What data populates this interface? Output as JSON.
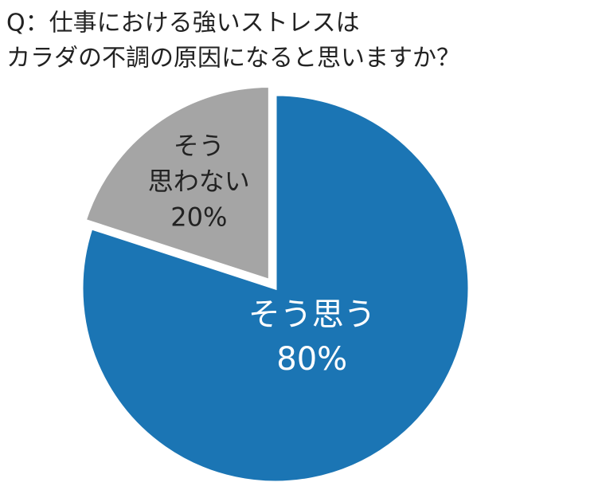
{
  "chart_data": {
    "type": "pie",
    "title": [
      "Q：仕事における強いストレスは",
      "カラダの不調の原因になると思いますか？"
    ],
    "categories": [
      [
        "そう思う"
      ],
      [
        "そう",
        "思わない"
      ]
    ],
    "values": [
      80,
      20
    ],
    "value_labels": [
      "80%",
      "20%"
    ],
    "colors": [
      "#1b75b4",
      "#a5a5a5"
    ]
  }
}
